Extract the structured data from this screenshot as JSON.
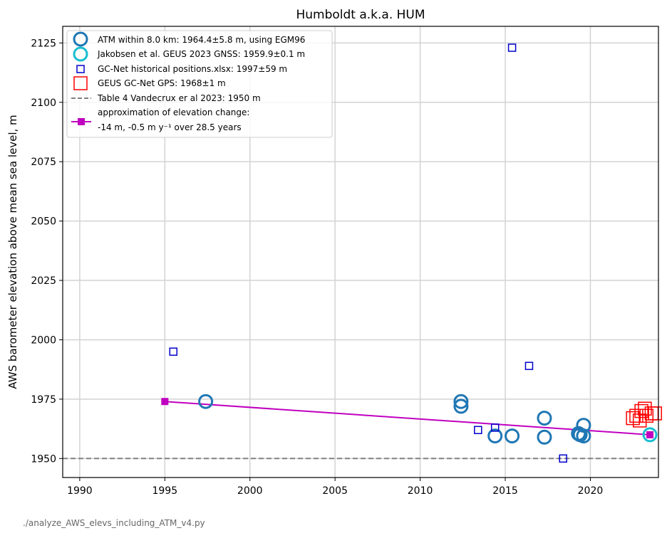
{
  "chart_data": {
    "type": "scatter",
    "title": "Humboldt a.k.a. HUM",
    "xlabel": "",
    "ylabel": "AWS barometer elevation above mean sea level, m",
    "xlim": [
      1989,
      2024
    ],
    "ylim": [
      1942,
      2132
    ],
    "x_ticks": [
      1990,
      1995,
      2000,
      2005,
      2010,
      2015,
      2020
    ],
    "y_ticks": [
      1950,
      1975,
      2000,
      2025,
      2050,
      2075,
      2100,
      2125
    ],
    "grid": true,
    "legend_position": "top-left",
    "series": [
      {
        "name": "ATM within 8.0 km: 1964.4±5.8 m, using EGM96",
        "marker": "circle",
        "color": "#1f77b4",
        "points": [
          [
            1997.4,
            1974
          ],
          [
            2012.4,
            1974
          ],
          [
            2012.4,
            1972
          ],
          [
            2014.4,
            1959.5
          ],
          [
            2015.4,
            1959.5
          ],
          [
            2017.3,
            1967
          ],
          [
            2017.3,
            1959
          ],
          [
            2019.3,
            1960.5
          ],
          [
            2019.4,
            1960
          ],
          [
            2019.6,
            1964
          ],
          [
            2019.6,
            1959.5
          ]
        ]
      },
      {
        "name": "Jakobsen et al. GEUS 2023 GNSS: 1959.9±0.1 m",
        "marker": "circle",
        "color": "#17becf",
        "points": [
          [
            2023.5,
            1960
          ]
        ]
      },
      {
        "name": "GC-Net historical positions.xlsx: 1997±59 m",
        "marker": "small-square",
        "color": "#0000cd",
        "points": [
          [
            1995.5,
            1995
          ],
          [
            2013.4,
            1962
          ],
          [
            2014.4,
            1963
          ],
          [
            2015.4,
            2123
          ],
          [
            2016.4,
            1989
          ],
          [
            2018.4,
            1950
          ]
        ]
      },
      {
        "name": "GEUS GC-Net GPS: 1968±1 m",
        "marker": "large-square",
        "color": "#ff0000",
        "points": [
          [
            2022.5,
            1967
          ],
          [
            2022.7,
            1968
          ],
          [
            2022.9,
            1966
          ],
          [
            2023.0,
            1970
          ],
          [
            2023.2,
            1971
          ],
          [
            2023.3,
            1968
          ],
          [
            2023.6,
            1969
          ],
          [
            2023.8,
            1969
          ]
        ]
      }
    ],
    "reference_line": {
      "name": "Table 4 Vandecrux er al 2023: 1950 m",
      "y": 1950,
      "color": "#808080",
      "style": "dashed"
    },
    "trend": {
      "name_line1": "approximation of elevation change:",
      "name_line2": "-14 m, -0.5 m y⁻¹ over 28.5 years",
      "color": "#c000c0",
      "points": [
        [
          1995,
          1974
        ],
        [
          2023.5,
          1960
        ]
      ]
    }
  },
  "footer": "./analyze_AWS_elevs_including_ATM_v4.py"
}
